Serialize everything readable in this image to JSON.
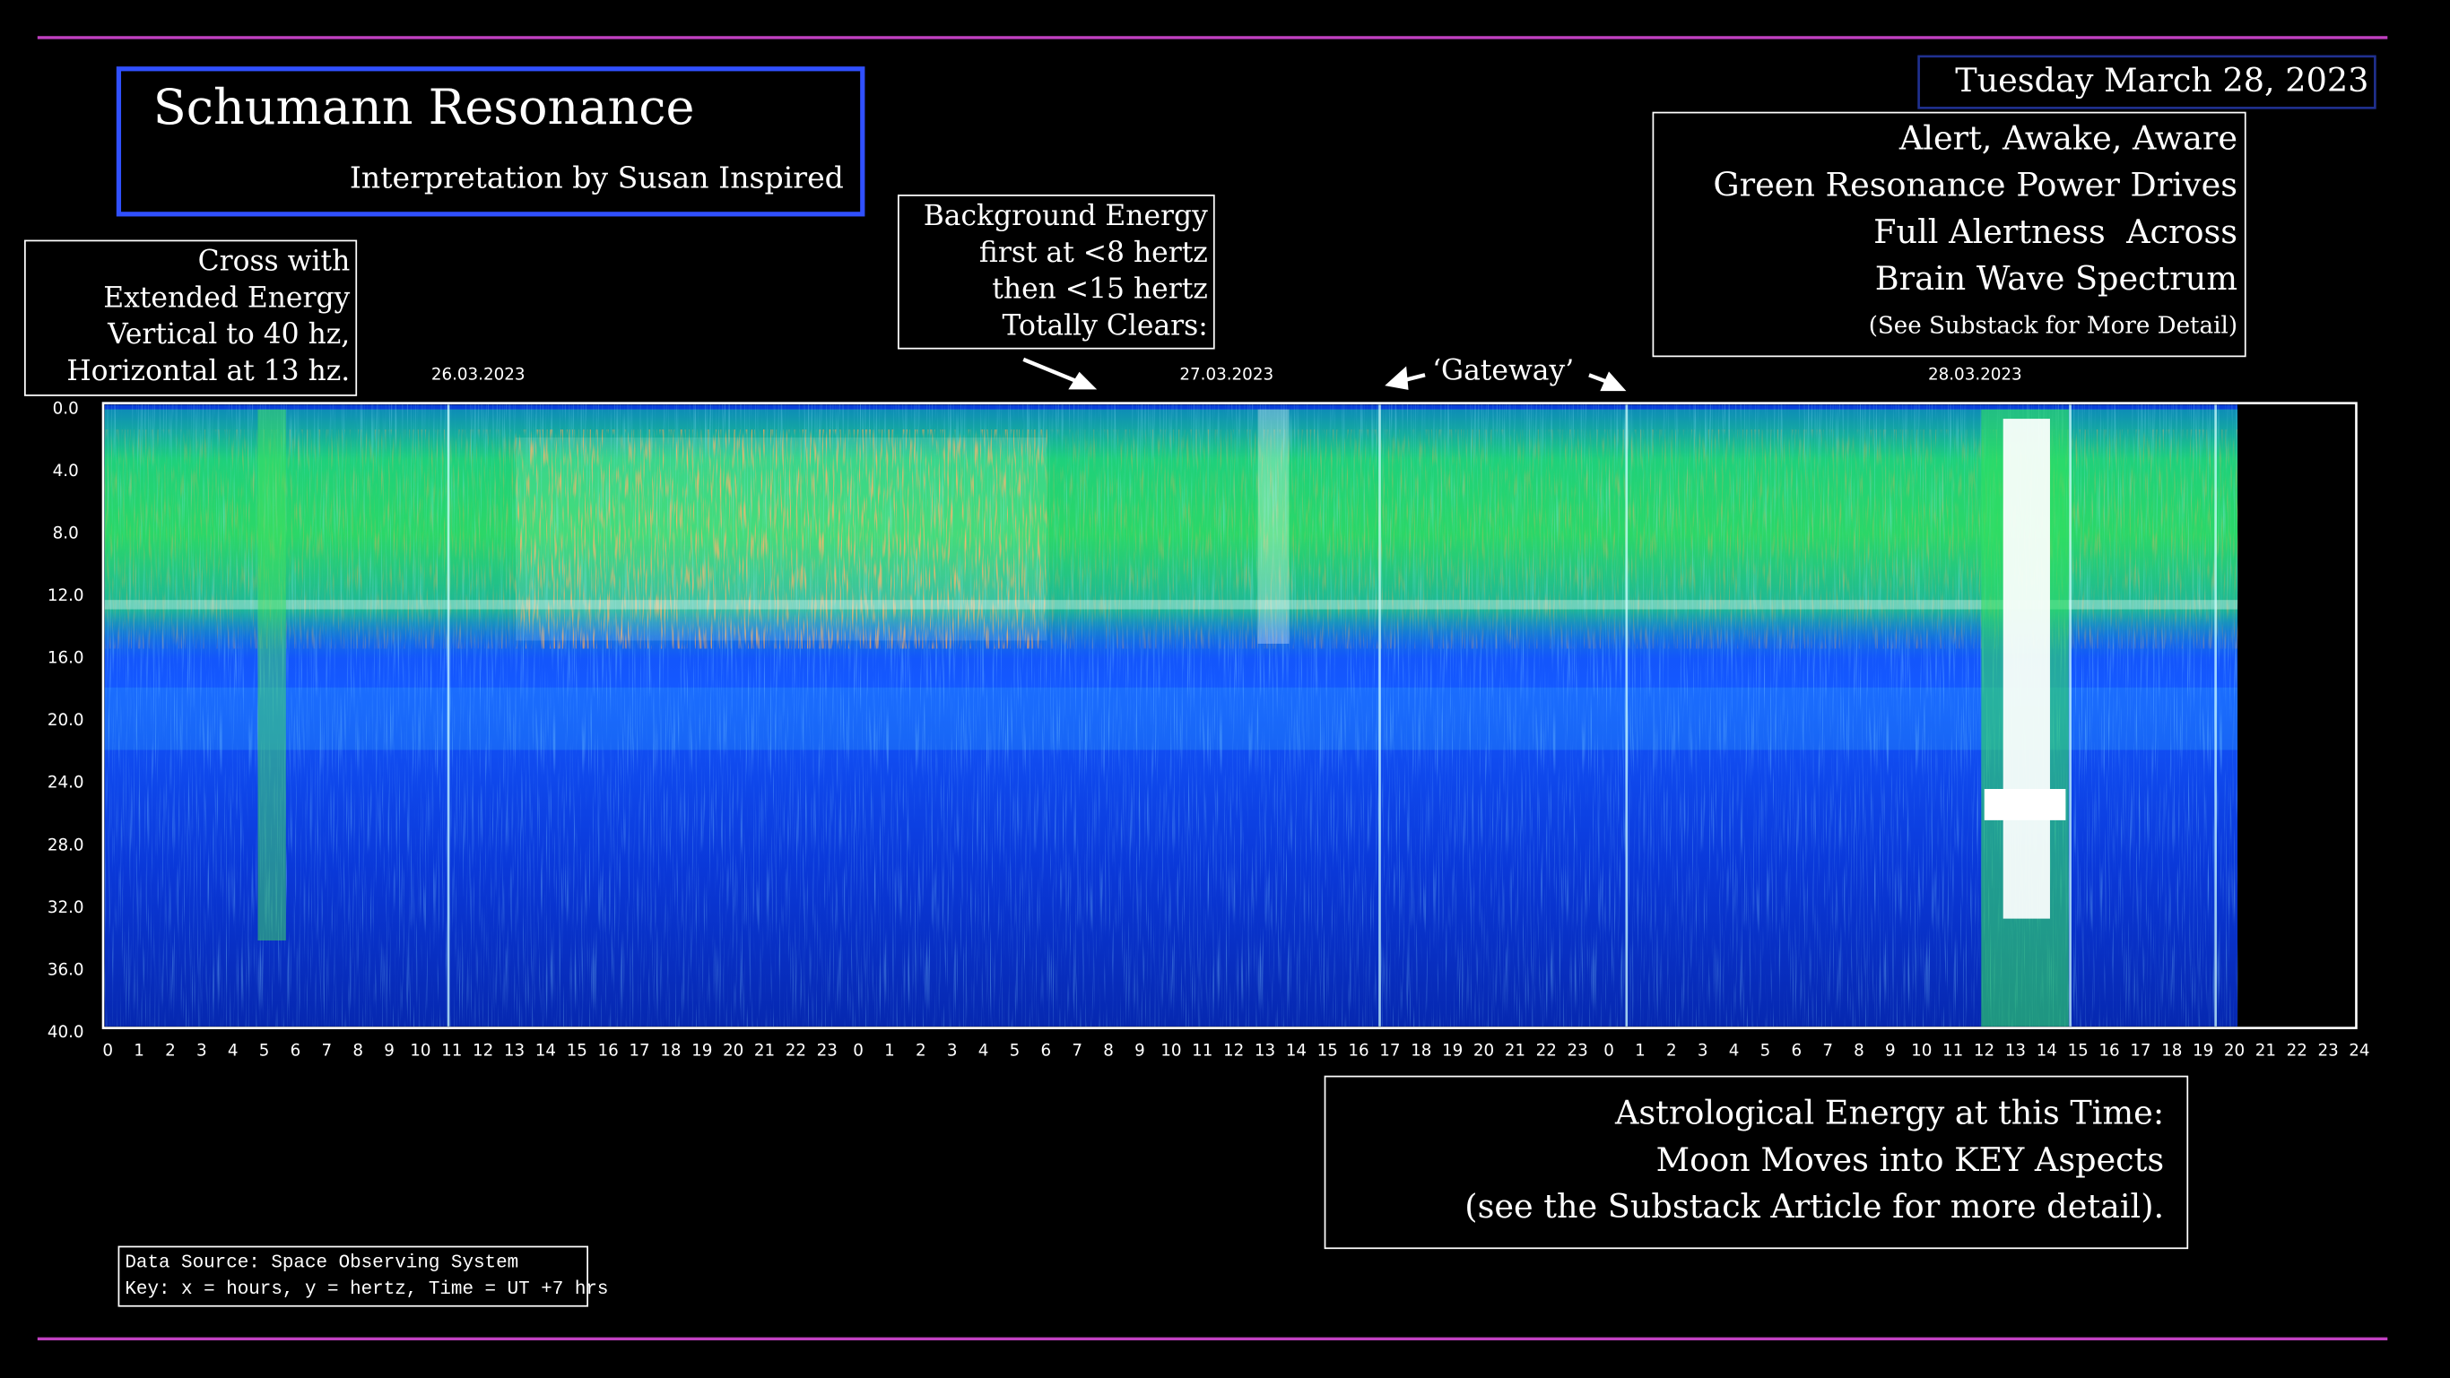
{
  "header": {
    "title": "Schumann Resonance",
    "subtitle": "Interpretation by Susan Inspired",
    "date": "Tuesday March 28, 2023"
  },
  "notes": {
    "cross": [
      "Cross with",
      "Extended Energy",
      "Vertical to 40 hz,",
      "Horizontal at 13 hz."
    ],
    "background": [
      "Background Energy",
      "first at <8 hertz",
      "then <15 hertz",
      "Totally Clears:"
    ],
    "alert": [
      "Alert, Awake, Aware",
      "Green Resonance Power Drives",
      "Full Alertness  Across",
      "Brain Wave Spectrum"
    ],
    "alert_detail": "(See Substack for More Detail)",
    "gateway": "‘Gateway’",
    "astro": [
      "Astrological Energy at this Time:",
      "Moon Moves into KEY Aspects",
      "(see the Substack Article for more detail)."
    ],
    "source": [
      "Data Source: Space Observing System",
      "Key: x = hours, y = hertz, Time = UT +7 hrs"
    ]
  },
  "axes": {
    "dates": [
      "26.03.2023",
      "27.03.2023",
      "28.03.2023"
    ],
    "y_labels": [
      "0.0",
      "4.0",
      "8.0",
      "12.0",
      "16.0",
      "20.0",
      "24.0",
      "28.0",
      "32.0",
      "36.0",
      "40.0"
    ],
    "x_labels": [
      "0",
      "1",
      "2",
      "3",
      "4",
      "5",
      "6",
      "7",
      "8",
      "9",
      "10",
      "11",
      "12",
      "13",
      "14",
      "15",
      "16",
      "17",
      "18",
      "19",
      "20",
      "21",
      "22",
      "23",
      "0",
      "1",
      "2",
      "3",
      "4",
      "5",
      "6",
      "7",
      "8",
      "9",
      "10",
      "11",
      "12",
      "13",
      "14",
      "15",
      "16",
      "17",
      "18",
      "19",
      "20",
      "21",
      "22",
      "23",
      "0",
      "1",
      "2",
      "3",
      "4",
      "5",
      "6",
      "7",
      "8",
      "9",
      "10",
      "11",
      "12",
      "13",
      "14",
      "15",
      "16",
      "17",
      "18",
      "19",
      "20",
      "21",
      "22",
      "23",
      "24"
    ]
  }
}
